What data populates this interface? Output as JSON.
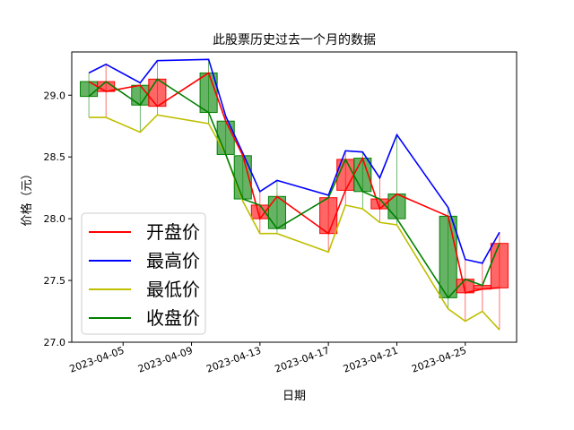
{
  "chart_data": {
    "type": "candlestick",
    "title": "此股票历史过去一个月的数据",
    "xlabel": "日期",
    "ylabel": "价格（元）",
    "ylim": [
      27.0,
      29.35
    ],
    "xlim": [
      "2023-04-02",
      "2023-04-28"
    ],
    "y_ticks": [
      27.0,
      27.5,
      28.0,
      28.5,
      29.0
    ],
    "y_tick_labels": [
      "27.0",
      "27.5",
      "28.0",
      "28.5",
      "29.0"
    ],
    "x_ticks": [
      "2023-04-05",
      "2023-04-09",
      "2023-04-13",
      "2023-04-17",
      "2023-04-21",
      "2023-04-25"
    ],
    "x_tick_labels": [
      "2023-04-05",
      "2023-04-09",
      "2023-04-13",
      "2023-04-17",
      "2023-04-21",
      "2023-04-25"
    ],
    "legend": {
      "location": "lower-left",
      "entries": [
        {
          "label": "开盘价",
          "color": "#ff0000"
        },
        {
          "label": "最高价",
          "color": "#0000ff"
        },
        {
          "label": "最低价",
          "color": "#bfbf00"
        },
        {
          "label": "收盘价",
          "color": "#008000"
        }
      ]
    },
    "colors": {
      "up": "#ff0000",
      "down": "#008000",
      "open": "#ff0000",
      "high": "#0000ff",
      "low": "#bfbf00",
      "close": "#008000"
    },
    "dates": [
      "2023-04-03",
      "2023-04-04",
      "2023-04-06",
      "2023-04-07",
      "2023-04-10",
      "2023-04-11",
      "2023-04-12",
      "2023-04-13",
      "2023-04-14",
      "2023-04-17",
      "2023-04-18",
      "2023-04-19",
      "2023-04-20",
      "2023-04-21",
      "2023-04-24",
      "2023-04-25",
      "2023-04-26",
      "2023-04-27"
    ],
    "open": [
      29.11,
      29.03,
      29.08,
      28.91,
      29.18,
      28.79,
      28.51,
      28.0,
      28.18,
      27.88,
      28.23,
      28.49,
      28.08,
      28.2,
      28.02,
      27.4,
      27.43,
      27.44
    ],
    "high": [
      29.18,
      29.25,
      29.1,
      29.28,
      29.29,
      28.83,
      28.53,
      28.22,
      28.31,
      28.19,
      28.55,
      28.54,
      28.33,
      28.68,
      28.09,
      27.67,
      27.64,
      27.89
    ],
    "low": [
      28.82,
      28.82,
      28.7,
      28.84,
      28.77,
      28.52,
      28.14,
      27.88,
      27.88,
      27.73,
      28.11,
      28.08,
      27.97,
      27.95,
      27.27,
      27.17,
      27.25,
      27.1
    ],
    "close": [
      28.99,
      29.11,
      28.92,
      29.13,
      28.86,
      28.52,
      28.16,
      28.11,
      27.92,
      28.17,
      28.48,
      28.22,
      28.16,
      28.0,
      27.36,
      27.51,
      27.46,
      27.8
    ]
  }
}
